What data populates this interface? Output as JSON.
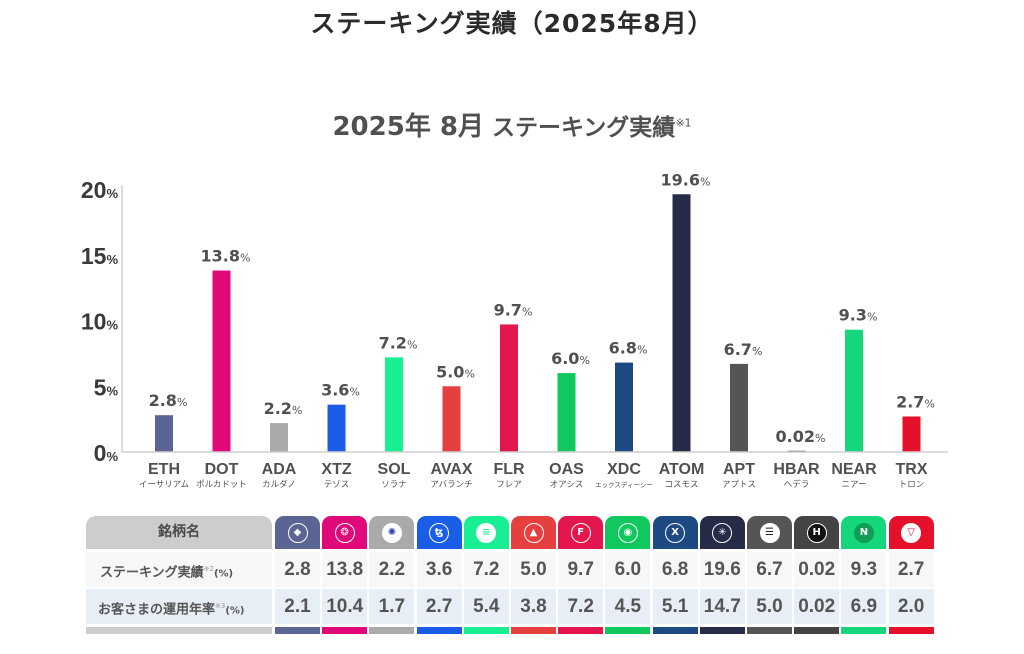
{
  "page_title": "ステーキング実績（2025年8月）",
  "chart_data": {
    "type": "bar",
    "title_year_month": "2025年 8月",
    "title_text": "ステーキング実績",
    "title_note": "※1",
    "title": "2025年 8月 ステーキング実績※1",
    "ylim": [
      0,
      20
    ],
    "yticks": [
      {
        "value": 0,
        "label": "0",
        "unit": "%"
      },
      {
        "value": 5,
        "label": "5",
        "unit": "%"
      },
      {
        "value": 10,
        "label": "10",
        "unit": "%"
      },
      {
        "value": 15,
        "label": "15",
        "unit": "%"
      },
      {
        "value": 20,
        "label": "20",
        "unit": "%"
      }
    ],
    "value_unit": "%",
    "grid": false,
    "categories": [
      "ETH",
      "DOT",
      "ADA",
      "XTZ",
      "SOL",
      "AVAX",
      "FLR",
      "OAS",
      "XDC",
      "ATOM",
      "APT",
      "HBAR",
      "NEAR",
      "TRX"
    ],
    "category_subtitles": [
      "イーサリアム",
      "ポルカドット",
      "カルダノ",
      "テゾス",
      "ソラナ",
      "アバランチ",
      "フレア",
      "オアシス",
      "エックスディーシー",
      "コスモス",
      "アプトス",
      "ヘデラ",
      "ニアー",
      "トロン"
    ],
    "values": [
      2.8,
      13.8,
      2.2,
      3.6,
      7.2,
      5.0,
      9.7,
      6.0,
      6.8,
      19.6,
      6.7,
      0.02,
      9.3,
      2.7
    ],
    "value_labels": [
      "2.8",
      "13.8",
      "2.2",
      "3.6",
      "7.2",
      "5.0",
      "9.7",
      "6.0",
      "6.8",
      "19.6",
      "6.7",
      "0.02",
      "9.3",
      "2.7"
    ],
    "colors": [
      "#5b6593",
      "#e0097a",
      "#aaaaaa",
      "#1a5ee8",
      "#18ef92",
      "#e5403f",
      "#e3174e",
      "#10c85d",
      "#1e4a84",
      "#262b47",
      "#555555",
      "#444444",
      "#16d67c",
      "#e5102a"
    ]
  },
  "table": {
    "header_label": "銘柄名",
    "row1_label": "ステーキング実績",
    "row1_note": "※2",
    "row1_unit": "(%)",
    "row2_label": "お客さまの運用年率",
    "row2_note": "※3",
    "row2_unit": "(%)",
    "coins": [
      {
        "icon": "ethereum-icon",
        "glyph": "◆",
        "row1": "2.8",
        "row2": "2.1"
      },
      {
        "icon": "polkadot-icon",
        "glyph": "❂",
        "row1": "13.8",
        "row2": "10.4"
      },
      {
        "icon": "cardano-icon",
        "glyph": "✺",
        "row1": "2.2",
        "row2": "1.7"
      },
      {
        "icon": "tezos-icon",
        "glyph": "ꜩ",
        "row1": "3.6",
        "row2": "2.7"
      },
      {
        "icon": "solana-icon",
        "glyph": "≡",
        "row1": "7.2",
        "row2": "5.4"
      },
      {
        "icon": "avalanche-icon",
        "glyph": "▲",
        "row1": "5.0",
        "row2": "3.8"
      },
      {
        "icon": "flare-icon",
        "glyph": "F",
        "row1": "9.7",
        "row2": "7.2"
      },
      {
        "icon": "oasys-icon",
        "glyph": "◉",
        "row1": "6.0",
        "row2": "4.5"
      },
      {
        "icon": "xdc-icon",
        "glyph": "X",
        "row1": "6.8",
        "row2": "5.1"
      },
      {
        "icon": "cosmos-icon",
        "glyph": "✳",
        "row1": "19.6",
        "row2": "14.7"
      },
      {
        "icon": "aptos-icon",
        "glyph": "☰",
        "row1": "6.7",
        "row2": "5.0"
      },
      {
        "icon": "hedera-icon",
        "glyph": "H",
        "row1": "0.02",
        "row2": "0.02"
      },
      {
        "icon": "near-icon",
        "glyph": "N",
        "row1": "9.3",
        "row2": "6.9"
      },
      {
        "icon": "tron-icon",
        "glyph": "▽",
        "row1": "2.7",
        "row2": "2.0"
      }
    ]
  }
}
